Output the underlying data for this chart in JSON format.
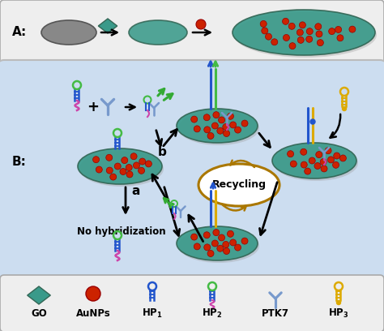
{
  "panel_A_bg": "#eeeeee",
  "panel_B_bg": "#ccddf0",
  "legend_bg": "#eeeeee",
  "go_color": "#3a9a8a",
  "aunp_color": "#cc2200",
  "hp1_color": "#2255cc",
  "hp2_loop_color": "#44bb44",
  "hp2_stem_color": "#2255cc",
  "hp2_tail_color": "#cc44aa",
  "ptk7_color": "#7799cc",
  "hp3_color": "#ddaa00",
  "recycling_color": "#aa7700",
  "green_col": "#33aa33",
  "label_A": "A:",
  "label_B": "B:",
  "label_a": "a",
  "label_b": "b",
  "label_no_hyb": "No hybridization",
  "label_recycling": "Recycling"
}
